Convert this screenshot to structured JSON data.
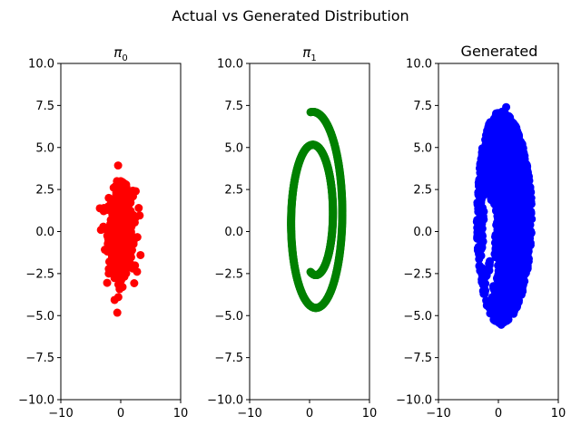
{
  "suptitle": "Actual vs Generated Distribution",
  "chart_data": [
    {
      "type": "scatter",
      "title": "π₀",
      "title_main": "π",
      "title_sub": "0",
      "color": "#ff0000",
      "xlim": [
        -10,
        10
      ],
      "ylim": [
        -10,
        10
      ],
      "xticks": [
        "−10",
        "0",
        "10"
      ],
      "yticks": [
        "−10.0",
        "−7.5",
        "−5.0",
        "−2.5",
        "0.0",
        "2.5",
        "5.0",
        "7.5",
        "10.0"
      ],
      "shape": "gaussian",
      "sx": 1.0,
      "sy": 1.2,
      "points": [
        [
          0.0,
          3.0
        ],
        [
          -0.6,
          2.8
        ],
        [
          0.7,
          2.6
        ],
        [
          2.5,
          2.4
        ],
        [
          -2.0,
          2.0
        ],
        [
          3.0,
          1.4
        ],
        [
          -2.8,
          1.4
        ],
        [
          -3.3,
          0.1
        ],
        [
          3.3,
          -1.4
        ],
        [
          -2.0,
          -2.5
        ],
        [
          2.0,
          -2.2
        ],
        [
          0.3,
          -3.3
        ],
        [
          -0.4,
          -3.9
        ]
      ]
    },
    {
      "type": "scatter",
      "title": "π₁",
      "title_main": "π",
      "title_sub": "1",
      "color": "#008000",
      "xlim": [
        -10,
        10
      ],
      "ylim": [
        -10,
        10
      ],
      "xticks": [
        "−10",
        "0",
        "10"
      ],
      "yticks": [
        "−10.0",
        "−7.5",
        "−5.0",
        "−2.5",
        "0.0",
        "2.5",
        "5.0",
        "7.5",
        "10.0"
      ],
      "shape": "spiral",
      "spiral_center": [
        0.8,
        0.8
      ],
      "spiral_start": [
        0.0,
        -2.4
      ],
      "spiral_end": [
        0.0,
        7.1
      ]
    },
    {
      "type": "scatter",
      "title": "Generated",
      "color": "#0000ff",
      "xlim": [
        -10,
        10
      ],
      "ylim": [
        -10,
        10
      ],
      "xticks": [
        "−10",
        "0",
        "10"
      ],
      "yticks": [
        "−10.0",
        "−7.5",
        "−5.0",
        "−2.5",
        "0.0",
        "2.5",
        "5.0",
        "7.5",
        "10.0"
      ],
      "shape": "ellipse",
      "center": [
        1.0,
        0.8
      ],
      "radii": [
        4.6,
        6.3
      ],
      "top_point": [
        1.3,
        7.4
      ],
      "gaps": [
        [
          -1.8,
          1.5
        ],
        [
          -1.0,
          0.8
        ],
        [
          -2.0,
          0.0
        ],
        [
          -1.2,
          -0.8
        ],
        [
          -2.2,
          -1.6
        ],
        [
          -0.8,
          -2.3
        ],
        [
          -1.5,
          -3.3
        ]
      ]
    }
  ]
}
